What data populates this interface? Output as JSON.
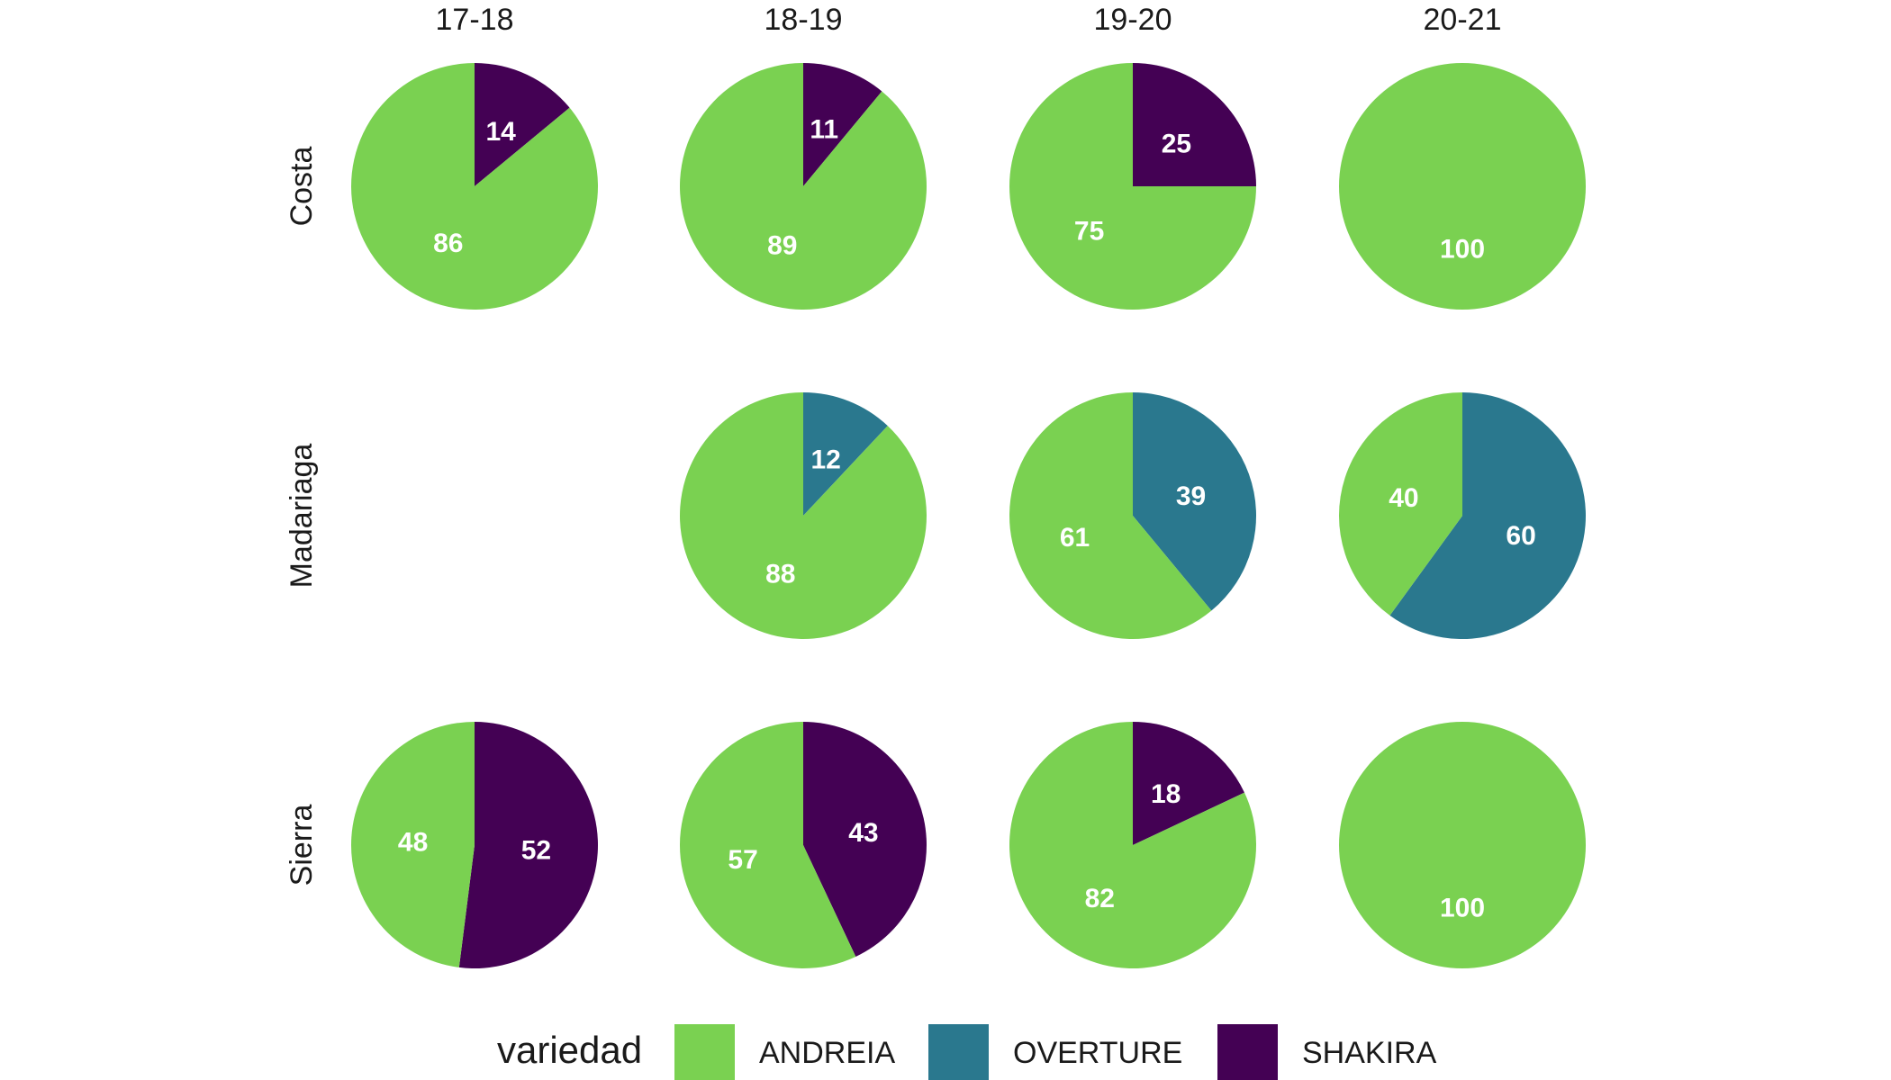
{
  "chart_data": {
    "type": "pie",
    "columns": [
      "17-18",
      "18-19",
      "19-20",
      "20-21"
    ],
    "rows": [
      "Costa",
      "Madariaga",
      "Sierra"
    ],
    "legend": {
      "title": "variedad",
      "position": "bottom",
      "entries": [
        {
          "name": "ANDREIA",
          "color": "#7ad151"
        },
        {
          "name": "OVERTURE",
          "color": "#2a788e"
        },
        {
          "name": "SHAKIRA",
          "color": "#440154"
        }
      ]
    },
    "panels": [
      {
        "row": "Costa",
        "column": "17-18",
        "slices": [
          {
            "variedad": "SHAKIRA",
            "value": 14
          },
          {
            "variedad": "ANDREIA",
            "value": 86
          }
        ]
      },
      {
        "row": "Costa",
        "column": "18-19",
        "slices": [
          {
            "variedad": "SHAKIRA",
            "value": 11
          },
          {
            "variedad": "ANDREIA",
            "value": 89
          }
        ]
      },
      {
        "row": "Costa",
        "column": "19-20",
        "slices": [
          {
            "variedad": "SHAKIRA",
            "value": 25
          },
          {
            "variedad": "ANDREIA",
            "value": 75
          }
        ]
      },
      {
        "row": "Costa",
        "column": "20-21",
        "slices": [
          {
            "variedad": "ANDREIA",
            "value": 100
          }
        ]
      },
      {
        "row": "Madariaga",
        "column": "18-19",
        "slices": [
          {
            "variedad": "OVERTURE",
            "value": 12
          },
          {
            "variedad": "ANDREIA",
            "value": 88
          }
        ]
      },
      {
        "row": "Madariaga",
        "column": "19-20",
        "slices": [
          {
            "variedad": "OVERTURE",
            "value": 39
          },
          {
            "variedad": "ANDREIA",
            "value": 61
          }
        ]
      },
      {
        "row": "Madariaga",
        "column": "20-21",
        "slices": [
          {
            "variedad": "OVERTURE",
            "value": 60
          },
          {
            "variedad": "ANDREIA",
            "value": 40
          }
        ]
      },
      {
        "row": "Sierra",
        "column": "17-18",
        "slices": [
          {
            "variedad": "SHAKIRA",
            "value": 52
          },
          {
            "variedad": "ANDREIA",
            "value": 48
          }
        ]
      },
      {
        "row": "Sierra",
        "column": "18-19",
        "slices": [
          {
            "variedad": "SHAKIRA",
            "value": 43
          },
          {
            "variedad": "ANDREIA",
            "value": 57
          }
        ]
      },
      {
        "row": "Sierra",
        "column": "19-20",
        "slices": [
          {
            "variedad": "SHAKIRA",
            "value": 18
          },
          {
            "variedad": "ANDREIA",
            "value": 82
          }
        ]
      },
      {
        "row": "Sierra",
        "column": "20-21",
        "slices": [
          {
            "variedad": "ANDREIA",
            "value": 100
          }
        ]
      }
    ]
  }
}
